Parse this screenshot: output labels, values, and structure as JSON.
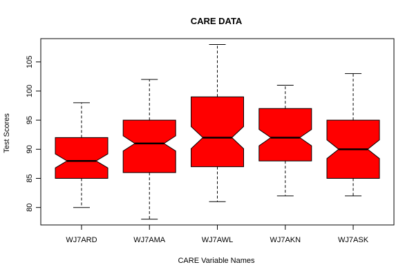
{
  "chart_data": {
    "type": "boxplot",
    "notched": true,
    "title": "CARE DATA",
    "xlabel": "CARE Variable Names",
    "ylabel": "Test Scores",
    "ylim": [
      77,
      109
    ],
    "yticks": [
      80,
      85,
      90,
      95,
      100,
      105
    ],
    "grid": false,
    "categories": [
      "WJ7ARD",
      "WJ7AMA",
      "WJ7AWL",
      "WJ7AKN",
      "WJ7ASK"
    ],
    "boxes": [
      {
        "name": "WJ7ARD",
        "min": 80,
        "q1": 85,
        "median": 88,
        "q3": 92,
        "max": 98,
        "notch_low": 86.8,
        "notch_high": 89.2
      },
      {
        "name": "WJ7AMA",
        "min": 78,
        "q1": 86,
        "median": 91,
        "q3": 95,
        "max": 102,
        "notch_low": 89.7,
        "notch_high": 92.3
      },
      {
        "name": "WJ7AWL",
        "min": 81,
        "q1": 87,
        "median": 92,
        "q3": 99,
        "max": 108,
        "notch_low": 90.1,
        "notch_high": 93.9
      },
      {
        "name": "WJ7AKN",
        "min": 82,
        "q1": 88,
        "median": 92,
        "q3": 97,
        "max": 101,
        "notch_low": 90.6,
        "notch_high": 93.4
      },
      {
        "name": "WJ7ASK",
        "min": 82,
        "q1": 85,
        "median": 90,
        "q3": 95,
        "max": 103,
        "notch_low": 88.4,
        "notch_high": 91.6
      }
    ],
    "colors": {
      "box_fill": "#ff0000",
      "stroke": "#000000"
    }
  }
}
